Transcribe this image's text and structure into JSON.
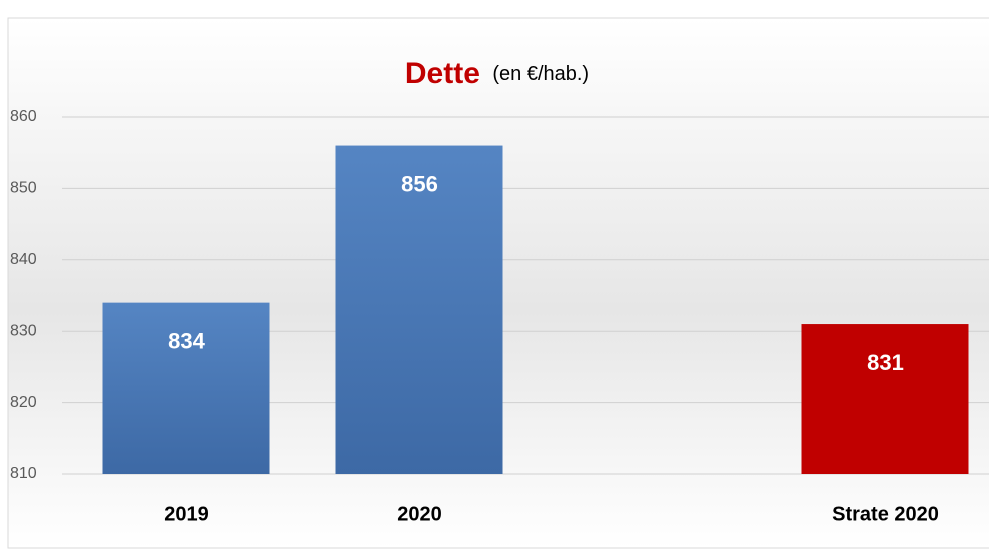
{
  "chart_data": {
    "type": "bar",
    "title": "Dette",
    "subtitle": "(en €/hab.)",
    "categories": [
      "2019",
      "2020",
      null,
      "Strate 2020"
    ],
    "values": [
      834,
      856,
      null,
      831
    ],
    "colors": [
      "#4a7ab8",
      "#4a7ab8",
      null,
      "#c00000"
    ],
    "ylim": [
      810,
      860
    ],
    "yticks": [
      810,
      820,
      830,
      840,
      850,
      860
    ],
    "grid": true
  }
}
